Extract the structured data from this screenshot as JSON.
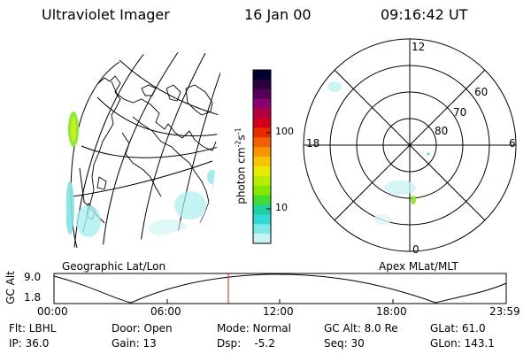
{
  "header": {
    "instrument": "Ultraviolet Imager",
    "date": "16 Jan 00",
    "time": "09:16:42 UT"
  },
  "colorbar": {
    "label": "photon cm",
    "label_sup1": "-2",
    "label_s": "s",
    "label_sup2": "-1",
    "ticks": [
      "100",
      "10"
    ],
    "colors": [
      "#000033",
      "#2a0040",
      "#55005a",
      "#8a0070",
      "#b00040",
      "#d0001a",
      "#e82a00",
      "#f06000",
      "#f59400",
      "#f7c400",
      "#e8e800",
      "#b8ec00",
      "#84e800",
      "#44dc30",
      "#20d0a0",
      "#30d8d8",
      "#7ee8e8",
      "#c8f2f2"
    ]
  },
  "polar_plot": {
    "hour_labels": [
      "12",
      "18",
      "6",
      "0"
    ],
    "lat_labels": [
      "60",
      "70",
      "80"
    ]
  },
  "map_label": "Geographic Lat/Lon",
  "polar_label": "Apex MLat/MLT",
  "altitude_plot": {
    "ylabel": "GC Alt",
    "y_ticks": [
      "9.0",
      "1.8"
    ],
    "x_ticks": [
      "00:00",
      "06:00",
      "12:00",
      "18:00",
      "23:59"
    ],
    "marker_color": "#d02020"
  },
  "status": {
    "flt": "Flt: LBHL",
    "ip": "IP: 36.0",
    "door": "Door: Open",
    "gain": "Gain: 13",
    "mode": "Mode: Normal",
    "dsp": "Dsp:    -5.2",
    "gcalt": "GC Alt: 8.0 Re",
    "seq": "Seq: 30",
    "glat": "GLat: 61.0",
    "glon": "GLon: 143.1"
  }
}
